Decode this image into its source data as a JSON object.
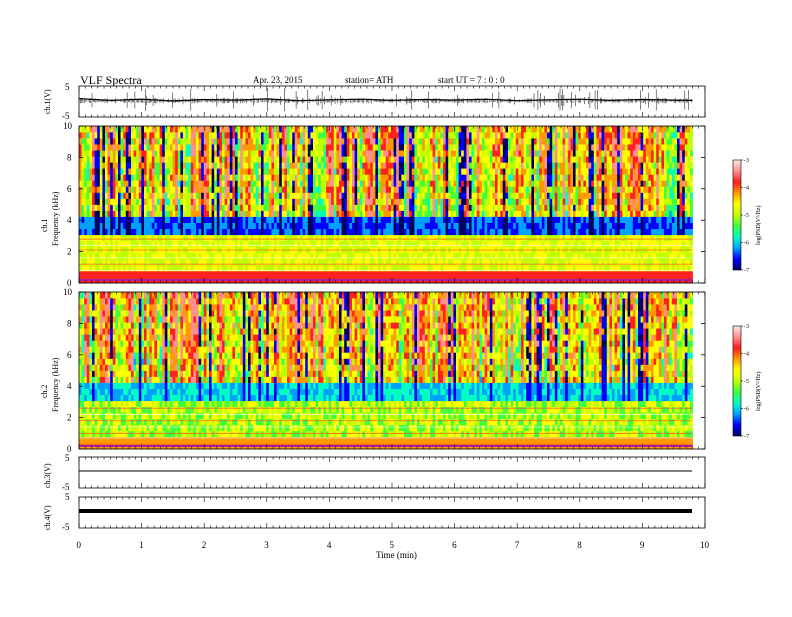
{
  "header": {
    "title": "VLF  Spectra",
    "date": "Apr. 23, 2015",
    "station": "station= ATH",
    "start": "start  UT  =   7  : 0  : 0"
  },
  "chart_data": [
    {
      "type": "line",
      "panel": "ch1_waveform",
      "ylabel": "ch.1(V)",
      "ylim": [
        -5,
        5
      ],
      "yticks": [
        "5",
        "-5"
      ],
      "xlim": [
        0,
        10
      ],
      "x": [
        0,
        0.5,
        1,
        1.5,
        2,
        2.5,
        3,
        3.5,
        4,
        4.5,
        5,
        5.5,
        6,
        6.5,
        7,
        7.5,
        8,
        8.5,
        9,
        9.5,
        9.8
      ],
      "values": [
        0.8,
        0.2,
        0.6,
        0.0,
        0.5,
        0.3,
        0.7,
        0.1,
        0.4,
        0.6,
        0.2,
        0.5,
        0.3,
        0.6,
        0.1,
        0.4,
        0.6,
        0.2,
        0.5,
        0.3,
        0.2
      ]
    },
    {
      "type": "heatmap",
      "panel": "ch1_spectrogram",
      "ylabel": "ch.1\nFrequency  (kHz)",
      "ylim": [
        0,
        10
      ],
      "yticks": [
        "0",
        "2",
        "4",
        "6",
        "8",
        "10"
      ],
      "xlim": [
        0,
        10
      ],
      "colorbar": {
        "label": "log(PSD(V²/Hz)",
        "range": [
          -7,
          -3
        ],
        "ticks": [
          "-3",
          "-4",
          "-5",
          "-6",
          "-7"
        ]
      }
    },
    {
      "type": "heatmap",
      "panel": "ch2_spectrogram",
      "ylabel": "ch.2\nFrequency  (kHz)",
      "ylim": [
        0,
        10
      ],
      "yticks": [
        "0",
        "2",
        "4",
        "6",
        "8",
        "10"
      ],
      "xlim": [
        0,
        10
      ],
      "colorbar": {
        "label": "log(PSD(V²/Hz)",
        "range": [
          -7,
          -3
        ],
        "ticks": [
          "-3",
          "-4",
          "-5",
          "-6",
          "-7"
        ]
      }
    },
    {
      "type": "line",
      "panel": "ch3_waveform",
      "ylabel": "ch.3(V)",
      "ylim": [
        -5,
        5
      ],
      "yticks": [
        "5",
        "-5"
      ],
      "xlim": [
        0,
        10
      ],
      "x": [
        0,
        9.8
      ],
      "values": [
        0,
        0
      ]
    },
    {
      "type": "line",
      "panel": "ch4_waveform",
      "ylabel": "ch.4(V)",
      "ylim": [
        -5,
        5
      ],
      "yticks": [
        "5",
        "-5"
      ],
      "xlim": [
        0,
        10
      ],
      "x": [
        0,
        9.8
      ],
      "values": [
        0,
        0
      ]
    }
  ],
  "xaxis": {
    "label": "Time  (min)",
    "ticks": [
      "0",
      "1",
      "2",
      "3",
      "4",
      "5",
      "6",
      "7",
      "8",
      "9",
      "10"
    ]
  },
  "colors": {
    "cmap": [
      "#000060",
      "#0000ff",
      "#00a0ff",
      "#00ffc0",
      "#40ff40",
      "#c0ff00",
      "#ffff00",
      "#ff9900",
      "#ff2020",
      "#ff9090",
      "#ffe8e8"
    ]
  }
}
